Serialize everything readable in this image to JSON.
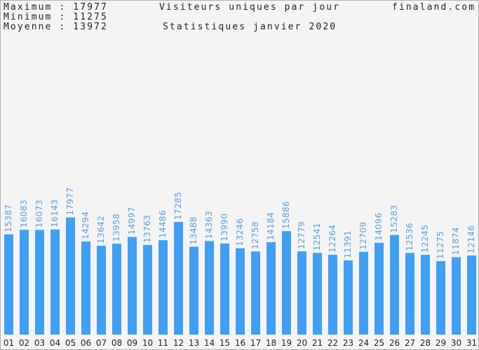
{
  "header": {
    "max_line": "Maximum : 17977",
    "min_line": "Minimum : 11275",
    "avg_line": "Moyenne : 13972",
    "title": "Visiteurs uniques par jour",
    "subtitle": "Statistiques janvier 2020",
    "site": "finaland.com"
  },
  "colors": {
    "bar": "#3f9ff5",
    "value_label": "#5a9fdc",
    "background": "#f4f4f4"
  },
  "chart_data": {
    "type": "bar",
    "title": "Visiteurs uniques par jour",
    "subtitle": "Statistiques janvier 2020",
    "categories": [
      "01",
      "02",
      "03",
      "04",
      "05",
      "06",
      "07",
      "08",
      "09",
      "10",
      "11",
      "12",
      "13",
      "14",
      "15",
      "16",
      "17",
      "18",
      "19",
      "20",
      "21",
      "22",
      "23",
      "24",
      "25",
      "26",
      "27",
      "28",
      "29",
      "30",
      "31"
    ],
    "values": [
      15387,
      16083,
      16073,
      16143,
      17977,
      14294,
      13642,
      13958,
      14997,
      13763,
      14486,
      17285,
      13488,
      14363,
      13990,
      13246,
      12758,
      14184,
      15886,
      12779,
      12541,
      12264,
      11391,
      12709,
      14096,
      15283,
      12536,
      12245,
      11275,
      11874,
      12146
    ],
    "ylim": [
      0,
      26000
    ],
    "grid": false,
    "data_labels": "vertical-above-bars"
  }
}
